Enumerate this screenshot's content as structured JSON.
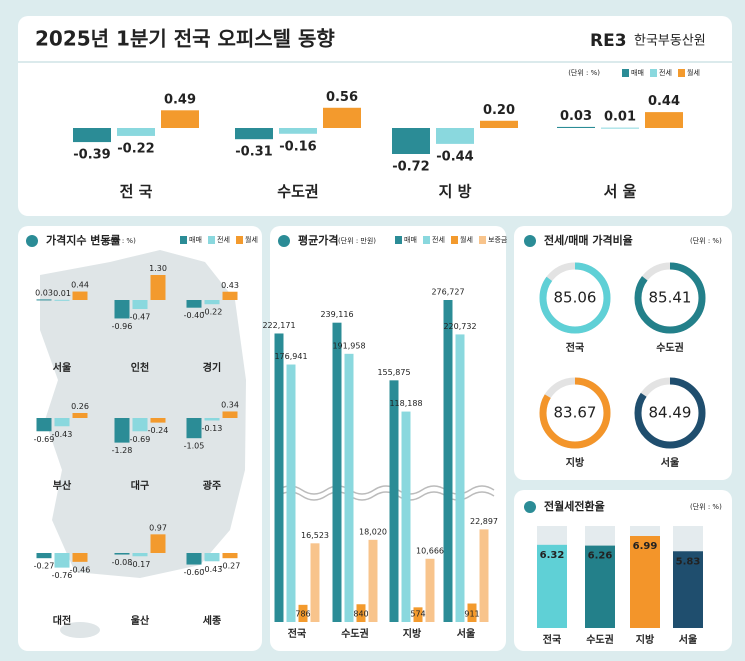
{
  "header": {
    "title": "2025년 1분기 전국 오피스텔 동향",
    "logo": "RE3",
    "org": "한국부동산원"
  },
  "chart_data": [
    {
      "type": "bar",
      "unit": "(단위 : %)",
      "categories": [
        "전 국",
        "수도권",
        "지 방",
        "서 울"
      ],
      "series": [
        {
          "name": "매매",
          "color": "#2b8c96",
          "values": [
            -0.39,
            -0.31,
            -0.72,
            0.03
          ],
          "value_labels": [
            "-0.39",
            "-0.31",
            "-0.72",
            "0.03"
          ]
        },
        {
          "name": "전세",
          "color": "#8ad8de",
          "values": [
            -0.22,
            -0.16,
            -0.44,
            0.01
          ],
          "value_labels": [
            "-0.22",
            "-0.16",
            "-0.44",
            "0.01"
          ]
        },
        {
          "name": "월세",
          "color": "#f39a2d",
          "values": [
            0.49,
            0.56,
            0.2,
            0.44
          ],
          "value_labels": [
            "0.49",
            "0.56",
            "0.20",
            "0.44"
          ]
        }
      ]
    },
    {
      "type": "bar",
      "title": "가격지수 변동률",
      "unit": "(단위 : %)",
      "categories": [
        "서울",
        "인천",
        "경기",
        "부산",
        "대구",
        "광주",
        "대전",
        "울산",
        "세종"
      ],
      "series": [
        {
          "name": "매매",
          "color": "#2b8c96",
          "values": [
            0.03,
            -0.96,
            -0.4,
            -0.69,
            -1.28,
            -1.05,
            -0.27,
            -0.08,
            -0.6
          ],
          "value_labels": [
            "0.03",
            "-0.96",
            "-0.40",
            "-0.69",
            "-1.28",
            "-1.05",
            "-0.27",
            "-0.08",
            "-0.60"
          ]
        },
        {
          "name": "전세",
          "color": "#8ad8de",
          "values": [
            0.01,
            -0.47,
            -0.22,
            -0.43,
            -0.69,
            -0.13,
            -0.76,
            -0.17,
            -0.43
          ],
          "value_labels": [
            "0.01",
            "-0.47",
            "-0.22",
            "-0.43",
            "-0.69",
            "-0.13",
            "-0.76",
            "-0.17",
            "-0.43"
          ]
        },
        {
          "name": "월세",
          "color": "#f39a2d",
          "values": [
            0.44,
            1.3,
            0.43,
            0.26,
            -0.24,
            0.34,
            -0.46,
            0.97,
            -0.27
          ],
          "value_labels": [
            "0.44",
            "1.30",
            "0.43",
            "0.26",
            "-0.24",
            "0.34",
            "-0.46",
            "0.97",
            "-0.27"
          ]
        }
      ]
    },
    {
      "type": "bar",
      "title": "평균가격",
      "unit": "(단위 : 만원)",
      "axis_break": true,
      "categories": [
        "전국",
        "수도권",
        "지방",
        "서울"
      ],
      "series": [
        {
          "name": "매매",
          "color": "#2b8c96",
          "values": [
            222171,
            239116,
            155875,
            276727
          ],
          "value_labels": [
            "222,171",
            "239,116",
            "155,875",
            "276,727"
          ]
        },
        {
          "name": "전세",
          "color": "#8ad8de",
          "values": [
            176941,
            191958,
            118188,
            220732
          ],
          "value_labels": [
            "176,941",
            "191,958",
            "118,188",
            "220,732"
          ]
        },
        {
          "name": "월세",
          "color": "#f39a2d",
          "values": [
            786,
            840,
            574,
            911
          ],
          "value_labels": [
            "786",
            "840",
            "574",
            "911"
          ]
        },
        {
          "name": "보증금",
          "color": "#f8c48c",
          "values": [
            16523,
            18020,
            10666,
            22897
          ],
          "value_labels": [
            "16,523",
            "18,020",
            "10,666",
            "22,897"
          ]
        }
      ]
    },
    {
      "type": "donut",
      "title": "전세/매매 가격비율",
      "unit": "(단위 : %)",
      "categories": [
        "전국",
        "수도권",
        "지방",
        "서울"
      ],
      "values": [
        85.06,
        85.41,
        83.67,
        84.49
      ],
      "colors": [
        "#5fd0d6",
        "#23808a",
        "#f3952a",
        "#1f4e6e"
      ]
    },
    {
      "type": "bar",
      "title": "전월세전환율",
      "unit": "(단위 : %)",
      "categories": [
        "전국",
        "수도권",
        "지방",
        "서울"
      ],
      "values": [
        6.32,
        6.26,
        6.99,
        5.83
      ],
      "colors": [
        "#5fd0d6",
        "#23808a",
        "#f3952a",
        "#1f4e6e"
      ]
    }
  ]
}
